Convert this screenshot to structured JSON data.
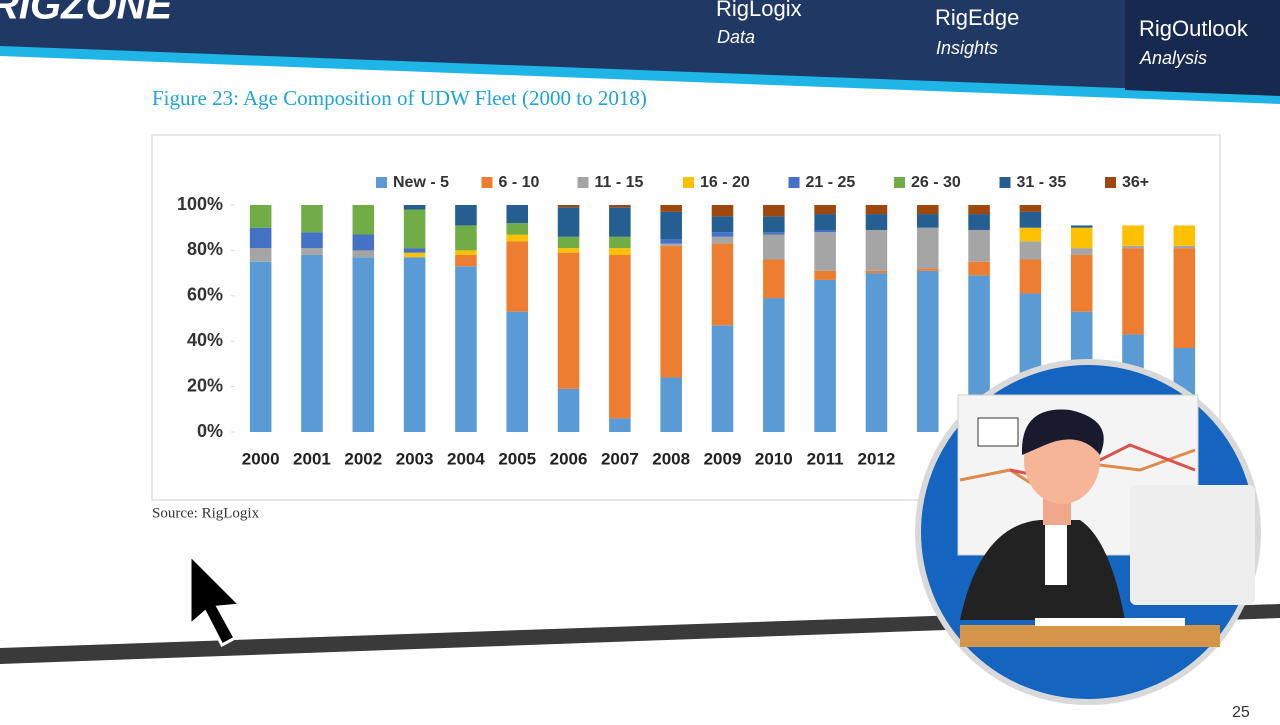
{
  "header": {
    "logo": "RIGZONE",
    "nav": [
      {
        "title": "RigLogix",
        "subtitle": "Data"
      },
      {
        "title": "RigEdge",
        "subtitle": "Insights"
      },
      {
        "title": "RigOutlook",
        "subtitle": "Analysis"
      }
    ]
  },
  "chart_data": {
    "type": "stacked-bar",
    "title": "Figure 23: Age Composition of UDW Fleet (2000 to 2018)",
    "categories": [
      "2000",
      "2001",
      "2002",
      "2003",
      "2004",
      "2005",
      "2006",
      "2007",
      "2008",
      "2009",
      "2010",
      "2011",
      "2012",
      null,
      null,
      null,
      null,
      null,
      null
    ],
    "series": [
      {
        "name": "New - 5",
        "color": "#5b9bd5",
        "values": [
          75,
          78,
          77,
          77,
          73,
          53,
          19,
          6,
          24,
          47,
          59,
          67,
          70,
          71,
          69,
          61,
          53,
          43,
          37
        ]
      },
      {
        "name": "6 - 10",
        "color": "#ed7d31",
        "values": [
          0,
          0,
          0,
          0,
          5,
          31,
          60,
          72,
          58,
          36,
          17,
          4,
          1,
          1,
          6,
          15,
          25,
          38,
          44
        ]
      },
      {
        "name": "11 - 15",
        "color": "#a5a5a5",
        "values": [
          6,
          3,
          3,
          0,
          0,
          0,
          0,
          0,
          1,
          3,
          11,
          17,
          18,
          18,
          14,
          8,
          3,
          1,
          1
        ]
      },
      {
        "name": "16 - 20",
        "color": "#ffc000",
        "values": [
          0,
          0,
          0,
          2,
          2,
          3,
          2,
          3,
          0,
          0,
          0,
          0,
          0,
          0,
          0,
          6,
          9,
          9,
          9
        ]
      },
      {
        "name": "21 - 25",
        "color": "#4472c4",
        "values": [
          9,
          7,
          7,
          2,
          0,
          0,
          0,
          0,
          2,
          2,
          1,
          1,
          0,
          0,
          0,
          0,
          0,
          0,
          0
        ]
      },
      {
        "name": "26 - 30",
        "color": "#70ad47",
        "values": [
          10,
          12,
          13,
          17,
          11,
          5,
          5,
          5,
          0,
          0,
          0,
          0,
          0,
          0,
          0,
          0,
          0,
          0,
          0
        ]
      },
      {
        "name": "31 - 35",
        "color": "#255e91",
        "values": [
          0,
          0,
          0,
          2,
          9,
          8,
          13,
          13,
          12,
          7,
          7,
          7,
          7,
          6,
          7,
          7,
          1,
          0,
          0
        ]
      },
      {
        "name": "36+",
        "color": "#9e480e",
        "values": [
          0,
          0,
          0,
          0,
          0,
          0,
          1,
          1,
          3,
          5,
          5,
          4,
          4,
          4,
          4,
          3,
          0,
          0,
          0
        ]
      }
    ],
    "ylim": [
      0,
      100
    ],
    "yticks": [
      {
        "value": 0,
        "label": "0%"
      },
      {
        "value": 20,
        "label": "20%"
      },
      {
        "value": 40,
        "label": "40%"
      },
      {
        "value": 60,
        "label": "60%"
      },
      {
        "value": 80,
        "label": "80%"
      },
      {
        "value": 100,
        "label": "100%"
      }
    ],
    "legend": "top"
  },
  "source": "Source: RigLogix",
  "page_number": "25"
}
